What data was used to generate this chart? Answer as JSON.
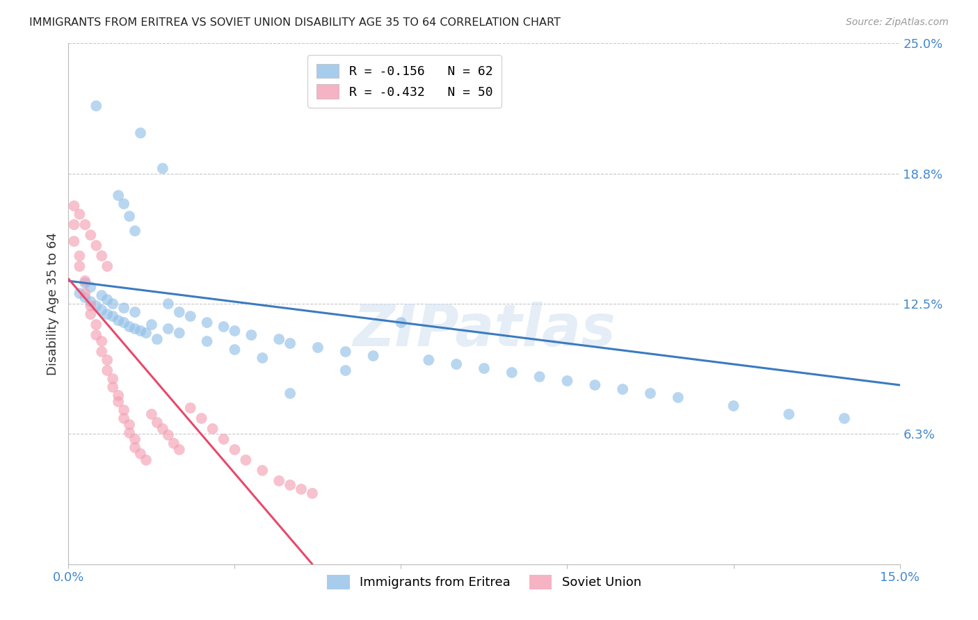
{
  "title": "IMMIGRANTS FROM ERITREA VS SOVIET UNION DISABILITY AGE 35 TO 64 CORRELATION CHART",
  "source": "Source: ZipAtlas.com",
  "ylabel": "Disability Age 35 to 64",
  "xlim": [
    0.0,
    0.15
  ],
  "ylim": [
    0.0,
    0.25
  ],
  "ytick_positions": [
    0.0,
    0.0625,
    0.125,
    0.1875,
    0.25
  ],
  "ytick_labels": [
    "",
    "6.3%",
    "12.5%",
    "18.8%",
    "25.0%"
  ],
  "grid_color": "#c8c8c8",
  "background_color": "#ffffff",
  "eritrea_color": "#92c0e8",
  "soviet_color": "#f4a0b5",
  "eritrea_line_color": "#3a7bbf",
  "soviet_line_color": "#e8496a",
  "eritrea_scatter_x": [
    0.005,
    0.013,
    0.017,
    0.009,
    0.01,
    0.011,
    0.012,
    0.002,
    0.003,
    0.004,
    0.005,
    0.006,
    0.007,
    0.008,
    0.009,
    0.01,
    0.011,
    0.012,
    0.013,
    0.014,
    0.016,
    0.018,
    0.02,
    0.022,
    0.025,
    0.028,
    0.03,
    0.033,
    0.038,
    0.04,
    0.045,
    0.05,
    0.055,
    0.06,
    0.065,
    0.07,
    0.075,
    0.08,
    0.085,
    0.09,
    0.095,
    0.1,
    0.105,
    0.11,
    0.12,
    0.13,
    0.14,
    0.003,
    0.004,
    0.006,
    0.007,
    0.008,
    0.01,
    0.012,
    0.015,
    0.018,
    0.02,
    0.025,
    0.03,
    0.035,
    0.04,
    0.05
  ],
  "eritrea_scatter_y": [
    0.22,
    0.207,
    0.19,
    0.177,
    0.173,
    0.167,
    0.16,
    0.13,
    0.128,
    0.126,
    0.124,
    0.122,
    0.12,
    0.119,
    0.117,
    0.116,
    0.114,
    0.113,
    0.112,
    0.111,
    0.108,
    0.125,
    0.121,
    0.119,
    0.116,
    0.114,
    0.112,
    0.11,
    0.108,
    0.106,
    0.104,
    0.102,
    0.1,
    0.116,
    0.098,
    0.096,
    0.094,
    0.092,
    0.09,
    0.088,
    0.086,
    0.084,
    0.082,
    0.08,
    0.076,
    0.072,
    0.07,
    0.135,
    0.133,
    0.129,
    0.127,
    0.125,
    0.123,
    0.121,
    0.115,
    0.113,
    0.111,
    0.107,
    0.103,
    0.099,
    0.082,
    0.093
  ],
  "soviet_scatter_x": [
    0.001,
    0.001,
    0.002,
    0.002,
    0.003,
    0.003,
    0.004,
    0.004,
    0.005,
    0.005,
    0.006,
    0.006,
    0.007,
    0.007,
    0.008,
    0.008,
    0.009,
    0.009,
    0.01,
    0.01,
    0.011,
    0.011,
    0.012,
    0.012,
    0.013,
    0.014,
    0.015,
    0.016,
    0.017,
    0.018,
    0.019,
    0.02,
    0.022,
    0.024,
    0.026,
    0.028,
    0.03,
    0.032,
    0.035,
    0.038,
    0.04,
    0.042,
    0.044,
    0.001,
    0.002,
    0.003,
    0.004,
    0.005,
    0.006,
    0.007
  ],
  "soviet_scatter_y": [
    0.163,
    0.155,
    0.148,
    0.143,
    0.136,
    0.13,
    0.124,
    0.12,
    0.115,
    0.11,
    0.107,
    0.102,
    0.098,
    0.093,
    0.089,
    0.085,
    0.081,
    0.078,
    0.074,
    0.07,
    0.067,
    0.063,
    0.06,
    0.056,
    0.053,
    0.05,
    0.072,
    0.068,
    0.065,
    0.062,
    0.058,
    0.055,
    0.075,
    0.07,
    0.065,
    0.06,
    0.055,
    0.05,
    0.045,
    0.04,
    0.038,
    0.036,
    0.034,
    0.172,
    0.168,
    0.163,
    0.158,
    0.153,
    0.148,
    0.143
  ],
  "eritrea_trendline_x": [
    0.0,
    0.15
  ],
  "eritrea_trendline_y": [
    0.136,
    0.086
  ],
  "soviet_trendline_x": [
    0.0,
    0.044
  ],
  "soviet_trendline_y": [
    0.137,
    0.0
  ],
  "legend1_label": "R = -0.156   N = 62",
  "legend2_label": "R = -0.432   N = 50",
  "bottom_legend1": "Immigrants from Eritrea",
  "bottom_legend2": "Soviet Union"
}
